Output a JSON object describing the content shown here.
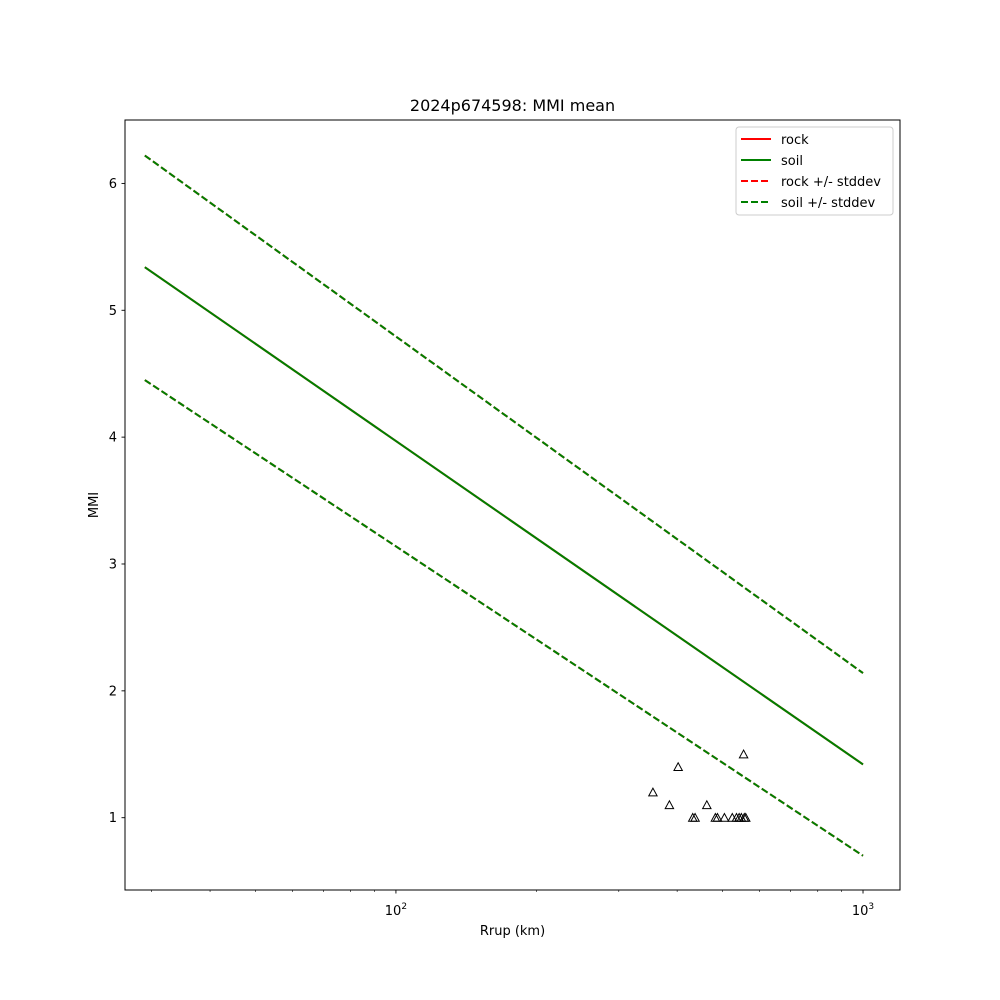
{
  "chart_data": {
    "type": "line",
    "title": "2024p674598: MMI mean",
    "xlabel": "Rrup (km)",
    "ylabel": "MMI",
    "xscale": "log",
    "xlim": [
      26.3,
      1200
    ],
    "ylim": [
      0.43,
      6.5
    ],
    "x_ticks": [
      {
        "value": 100,
        "base": "10",
        "exp": "2"
      },
      {
        "value": 1000,
        "base": "10",
        "exp": "3"
      }
    ],
    "y_ticks": [
      1,
      2,
      3,
      4,
      5,
      6
    ],
    "grid": false,
    "legend_position": "upper right",
    "series": [
      {
        "name": "rock",
        "color": "#ff0000",
        "style": "solid",
        "x": [
          29,
          1000
        ],
        "y": [
          5.34,
          1.42
        ]
      },
      {
        "name": "soil",
        "color": "#008000",
        "style": "solid",
        "x": [
          29,
          1000
        ],
        "y": [
          5.34,
          1.42
        ]
      },
      {
        "name": "rock +/- stddev",
        "color": "#ff0000",
        "style": "dashed",
        "x": [
          29,
          1000
        ],
        "y": [
          6.22,
          2.14
        ],
        "y_lower": [
          4.45,
          0.7
        ]
      },
      {
        "name": "soil +/- stddev",
        "color": "#008000",
        "style": "dashed",
        "x": [
          29,
          1000
        ],
        "y": [
          6.22,
          2.14
        ],
        "y_lower": [
          4.45,
          0.7
        ]
      }
    ],
    "observations": {
      "marker": "triangle",
      "x": [
        355,
        385,
        402,
        432,
        437,
        463,
        483,
        488,
        505,
        525,
        536,
        543,
        549,
        555,
        557,
        561
      ],
      "y": [
        1.2,
        1.1,
        1.4,
        1.0,
        1.0,
        1.1,
        1.0,
        1.0,
        1.0,
        1.0,
        1.0,
        1.0,
        1.0,
        1.5,
        1.0,
        1.0
      ]
    }
  }
}
